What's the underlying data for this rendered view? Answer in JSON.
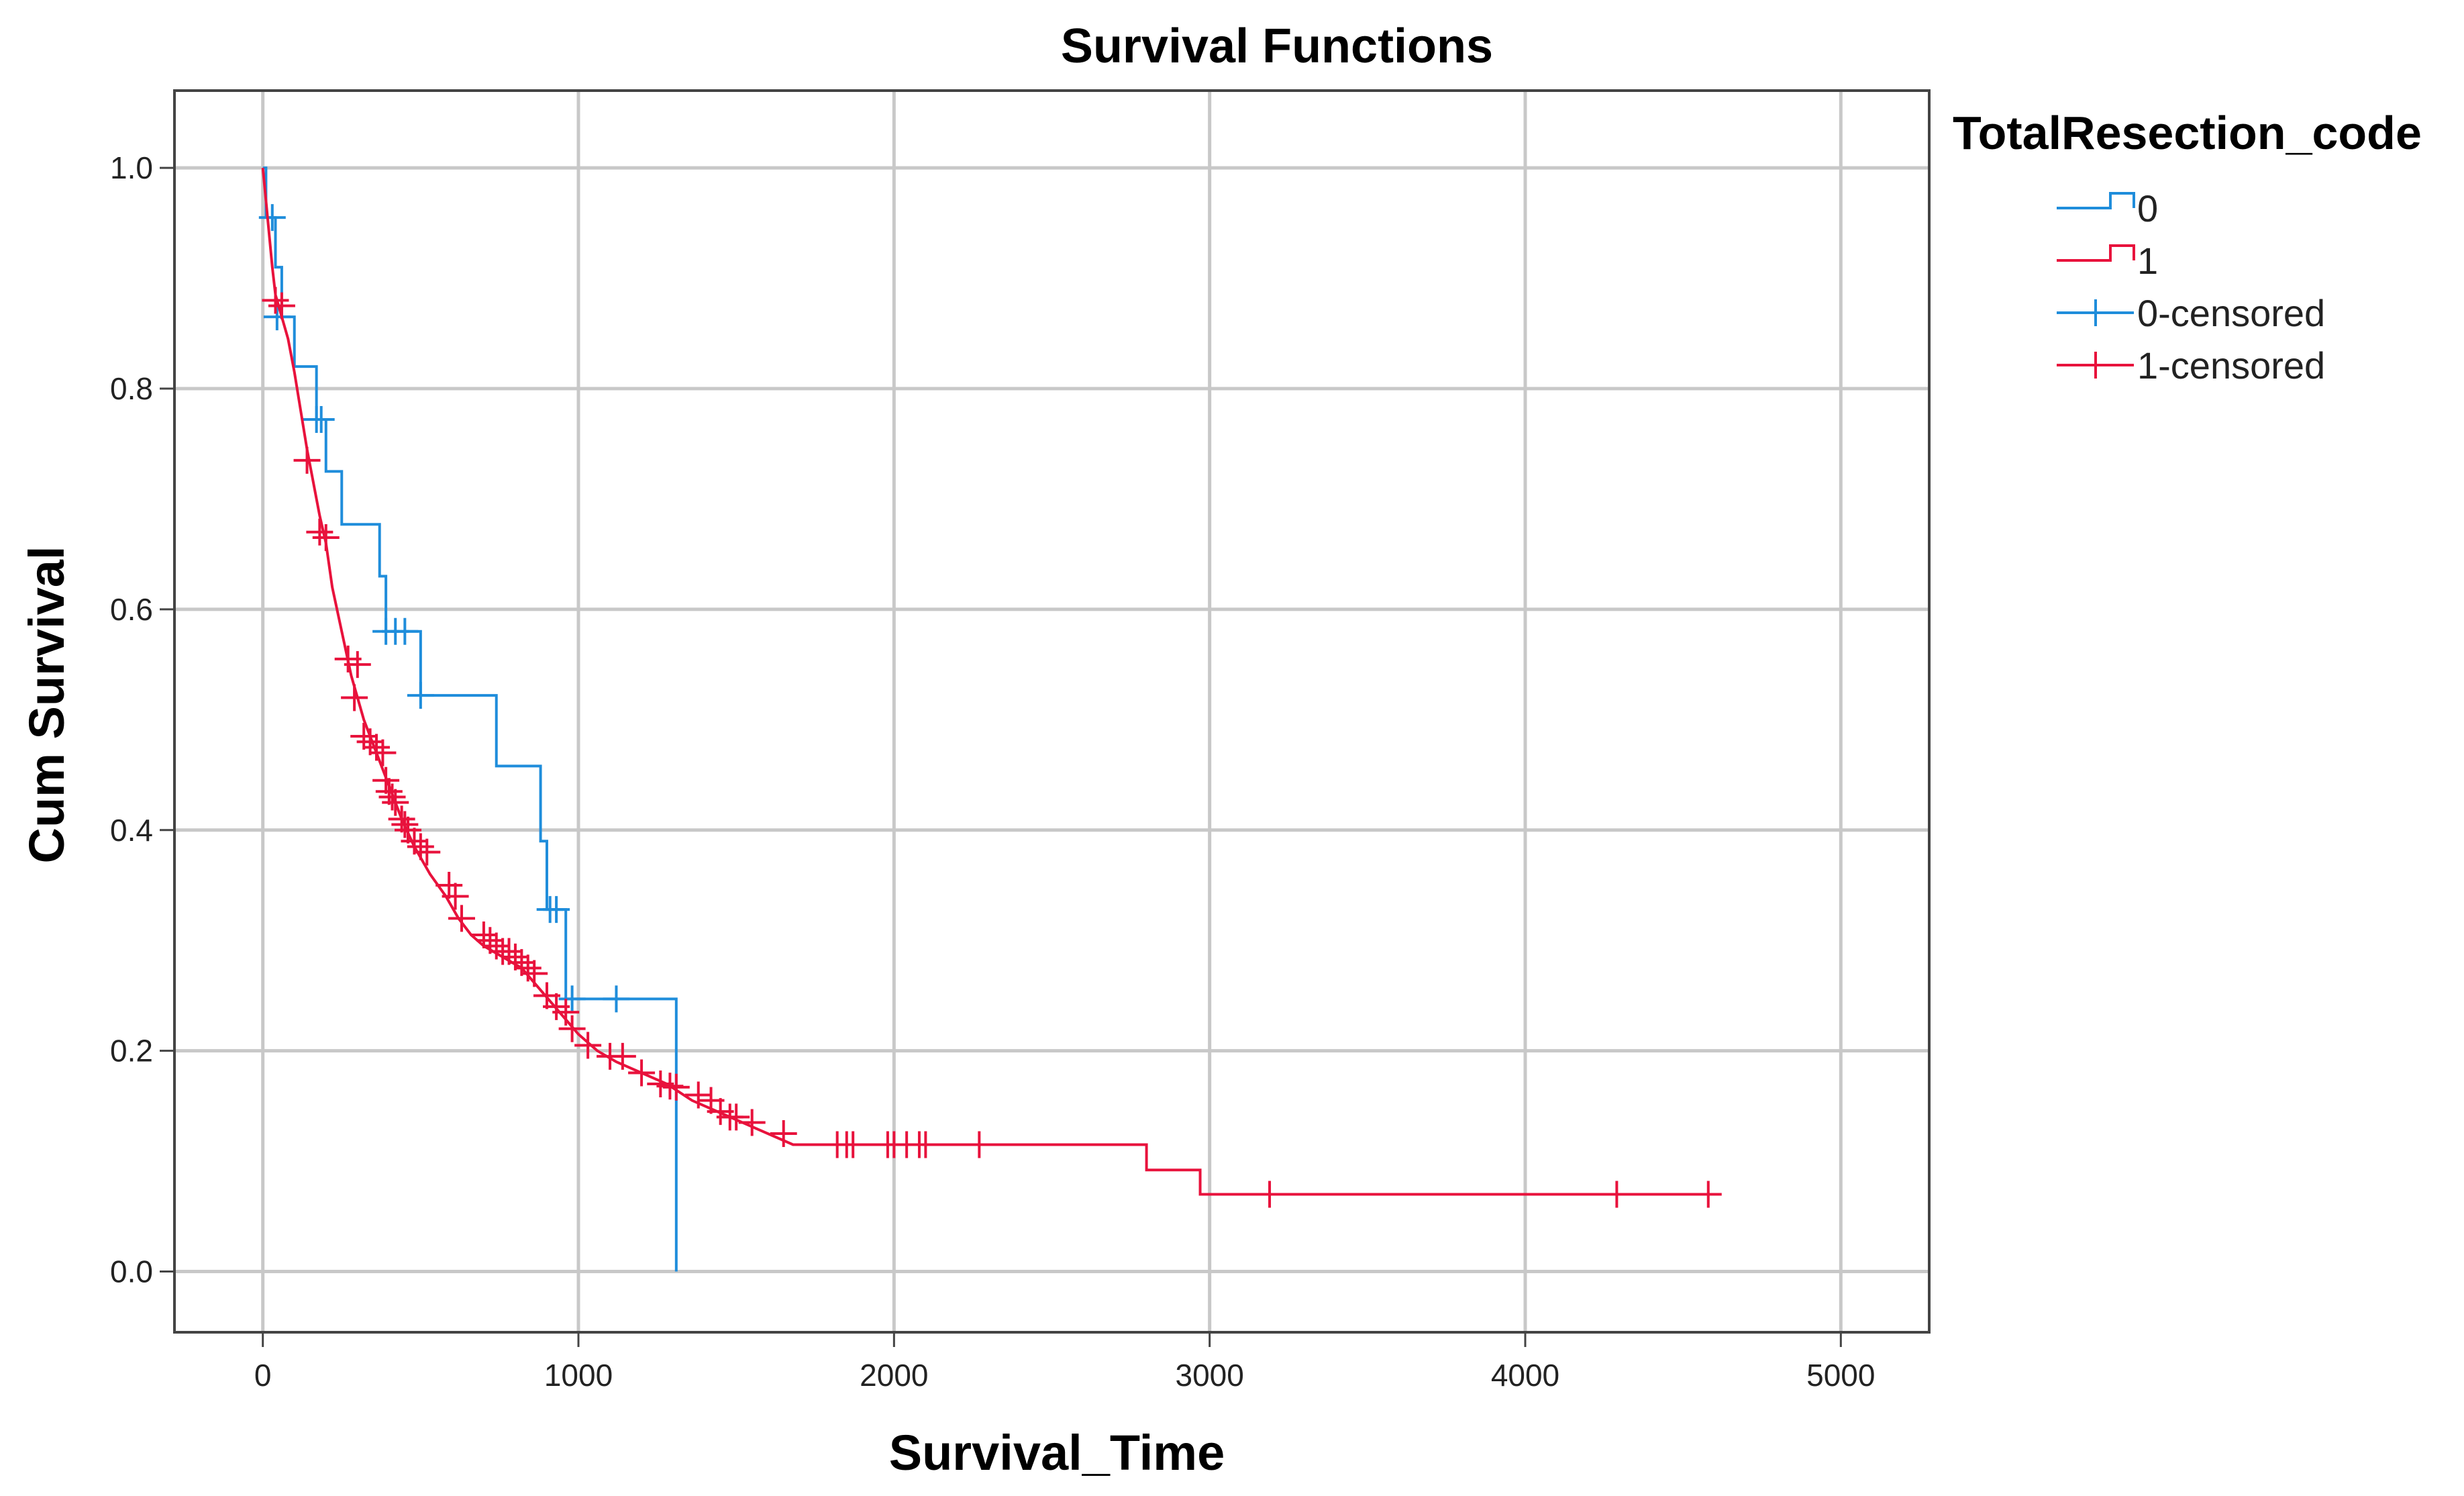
{
  "chart_data": {
    "type": "line",
    "title": "Survival Functions",
    "xlabel": "Survival_Time",
    "ylabel": "Cum Survival",
    "xlim": [
      -280,
      5280
    ],
    "ylim": [
      -0.055,
      1.07
    ],
    "x_ticks": [
      "0",
      "1000",
      "2000",
      "3000",
      "4000",
      "5000"
    ],
    "y_ticks": [
      "0.0",
      "0.2",
      "0.4",
      "0.6",
      "0.8",
      "1.0"
    ],
    "grid": true,
    "legend": {
      "title": "TotalResection_code",
      "position": "right",
      "entries": [
        {
          "label": "0",
          "kind": "line",
          "color": "#1f8ddb"
        },
        {
          "label": "1",
          "kind": "line",
          "color": "#e8123c"
        },
        {
          "label": "0-censored",
          "kind": "censor",
          "color": "#1f8ddb"
        },
        {
          "label": "1-censored",
          "kind": "censor",
          "color": "#e8123c"
        }
      ]
    },
    "series": [
      {
        "name": "0",
        "color": "#1f8ddb",
        "steps": [
          [
            0,
            1.0
          ],
          [
            10,
            0.955
          ],
          [
            40,
            0.91
          ],
          [
            60,
            0.865
          ],
          [
            100,
            0.82
          ],
          [
            170,
            0.772
          ],
          [
            200,
            0.725
          ],
          [
            250,
            0.677
          ],
          [
            370,
            0.63
          ],
          [
            390,
            0.58
          ],
          [
            500,
            0.522
          ],
          [
            740,
            0.458
          ],
          [
            880,
            0.39
          ],
          [
            900,
            0.328
          ],
          [
            960,
            0.247
          ],
          [
            1310,
            0.0
          ]
        ],
        "censored": [
          [
            30,
            0.955
          ],
          [
            45,
            0.865
          ],
          [
            170,
            0.772
          ],
          [
            185,
            0.772
          ],
          [
            390,
            0.58
          ],
          [
            420,
            0.58
          ],
          [
            450,
            0.58
          ],
          [
            500,
            0.522
          ],
          [
            910,
            0.328
          ],
          [
            930,
            0.328
          ],
          [
            980,
            0.247
          ],
          [
            1120,
            0.247
          ]
        ]
      },
      {
        "name": "1",
        "color": "#e8123c",
        "points": [
          [
            0,
            1.0
          ],
          [
            10,
            0.97
          ],
          [
            20,
            0.94
          ],
          [
            30,
            0.91
          ],
          [
            40,
            0.885
          ],
          [
            60,
            0.865
          ],
          [
            80,
            0.845
          ],
          [
            100,
            0.815
          ],
          [
            120,
            0.78
          ],
          [
            140,
            0.745
          ],
          [
            160,
            0.715
          ],
          [
            180,
            0.685
          ],
          [
            200,
            0.66
          ],
          [
            220,
            0.62
          ],
          [
            250,
            0.58
          ],
          [
            280,
            0.54
          ],
          [
            320,
            0.5
          ],
          [
            360,
            0.47
          ],
          [
            400,
            0.44
          ],
          [
            440,
            0.41
          ],
          [
            480,
            0.385
          ],
          [
            530,
            0.36
          ],
          [
            580,
            0.34
          ],
          [
            620,
            0.32
          ],
          [
            660,
            0.305
          ],
          [
            700,
            0.295
          ],
          [
            760,
            0.285
          ],
          [
            820,
            0.275
          ],
          [
            880,
            0.255
          ],
          [
            940,
            0.235
          ],
          [
            1000,
            0.215
          ],
          [
            1060,
            0.2
          ],
          [
            1120,
            0.19
          ],
          [
            1200,
            0.18
          ],
          [
            1280,
            0.17
          ],
          [
            1360,
            0.155
          ],
          [
            1440,
            0.145
          ],
          [
            1520,
            0.135
          ],
          [
            1600,
            0.125
          ],
          [
            1680,
            0.115
          ],
          [
            2800,
            0.115
          ],
          [
            2800,
            0.092
          ],
          [
            2970,
            0.092
          ],
          [
            2970,
            0.07
          ],
          [
            4600,
            0.07
          ]
        ],
        "censored": [
          [
            40,
            0.88
          ],
          [
            60,
            0.875
          ],
          [
            140,
            0.735
          ],
          [
            180,
            0.67
          ],
          [
            200,
            0.665
          ],
          [
            270,
            0.555
          ],
          [
            300,
            0.55
          ],
          [
            290,
            0.52
          ],
          [
            320,
            0.485
          ],
          [
            340,
            0.48
          ],
          [
            360,
            0.475
          ],
          [
            380,
            0.47
          ],
          [
            390,
            0.445
          ],
          [
            400,
            0.435
          ],
          [
            410,
            0.43
          ],
          [
            420,
            0.425
          ],
          [
            440,
            0.41
          ],
          [
            450,
            0.405
          ],
          [
            460,
            0.4
          ],
          [
            480,
            0.39
          ],
          [
            500,
            0.385
          ],
          [
            520,
            0.38
          ],
          [
            590,
            0.35
          ],
          [
            610,
            0.34
          ],
          [
            630,
            0.32
          ],
          [
            700,
            0.305
          ],
          [
            720,
            0.3
          ],
          [
            740,
            0.295
          ],
          [
            760,
            0.29
          ],
          [
            780,
            0.29
          ],
          [
            800,
            0.285
          ],
          [
            820,
            0.28
          ],
          [
            840,
            0.275
          ],
          [
            860,
            0.27
          ],
          [
            900,
            0.25
          ],
          [
            930,
            0.24
          ],
          [
            960,
            0.235
          ],
          [
            980,
            0.22
          ],
          [
            1030,
            0.205
          ],
          [
            1100,
            0.195
          ],
          [
            1140,
            0.195
          ],
          [
            1200,
            0.18
          ],
          [
            1260,
            0.17
          ],
          [
            1290,
            0.168
          ],
          [
            1310,
            0.167
          ],
          [
            1380,
            0.16
          ],
          [
            1420,
            0.155
          ],
          [
            1450,
            0.145
          ],
          [
            1480,
            0.14
          ],
          [
            1500,
            0.14
          ],
          [
            1550,
            0.135
          ],
          [
            1650,
            0.125
          ],
          [
            1820,
            0.115
          ],
          [
            1850,
            0.115
          ],
          [
            1870,
            0.115
          ],
          [
            1980,
            0.115
          ],
          [
            2000,
            0.115
          ],
          [
            2040,
            0.115
          ],
          [
            2080,
            0.115
          ],
          [
            2100,
            0.115
          ],
          [
            2270,
            0.115
          ],
          [
            3190,
            0.07
          ],
          [
            4290,
            0.07
          ],
          [
            4580,
            0.07
          ]
        ]
      }
    ]
  }
}
